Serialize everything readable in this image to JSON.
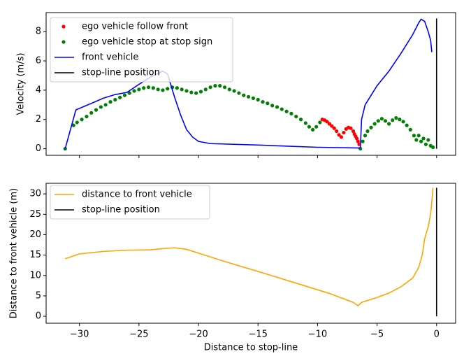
{
  "chart_data": [
    {
      "type": "line",
      "ylabel": "Velocity (m/s)",
      "xlim": [
        -32.8,
        1.6
      ],
      "ylim": [
        -0.45,
        9.3
      ],
      "yticks": [
        0,
        2,
        4,
        6,
        8
      ],
      "legend": "upper left",
      "series": [
        {
          "name": "ego vehicle follow front",
          "type": "scatter",
          "color": "#ff0000",
          "x": [
            -9.6,
            -9.4,
            -9.2,
            -9.0,
            -8.8,
            -8.6,
            -8.4,
            -8.2,
            -8.0,
            -7.8,
            -7.6,
            -7.4,
            -7.2,
            -7.0,
            -6.9,
            -6.8,
            -6.7,
            -6.6,
            -6.5
          ],
          "values": [
            2.0,
            1.95,
            1.85,
            1.7,
            1.55,
            1.4,
            1.2,
            0.95,
            0.8,
            1.1,
            1.35,
            1.45,
            1.4,
            1.2,
            1.0,
            0.85,
            0.7,
            0.5,
            0.3
          ]
        },
        {
          "name": "ego vehicle stop at stop sign",
          "type": "scatter",
          "color": "#008000",
          "x": [
            -31.2,
            -30.5,
            -30.2,
            -29.8,
            -29.4,
            -29.0,
            -28.6,
            -28.2,
            -27.8,
            -27.4,
            -27.0,
            -26.6,
            -26.2,
            -25.8,
            -25.4,
            -25.0,
            -24.6,
            -24.2,
            -23.8,
            -23.4,
            -23.0,
            -22.6,
            -22.2,
            -21.8,
            -21.4,
            -21.0,
            -20.6,
            -20.2,
            -19.8,
            -19.4,
            -19.0,
            -18.6,
            -18.2,
            -17.8,
            -17.4,
            -17.0,
            -16.6,
            -16.2,
            -15.8,
            -15.4,
            -15.0,
            -14.6,
            -14.2,
            -13.8,
            -13.4,
            -13.0,
            -12.6,
            -12.2,
            -11.8,
            -11.4,
            -11.0,
            -10.7,
            -10.4,
            -10.1,
            -9.8,
            -6.4,
            -6.2,
            -6.0,
            -5.8,
            -5.5,
            -5.2,
            -4.9,
            -4.6,
            -4.3,
            -4.0,
            -3.7,
            -3.4,
            -3.1,
            -2.8,
            -2.5,
            -2.2,
            -1.9,
            -1.7,
            -1.5,
            -1.3,
            -1.1,
            -0.9,
            -0.7,
            -0.5,
            -0.3
          ],
          "values": [
            0.0,
            1.6,
            1.8,
            2.0,
            2.2,
            2.45,
            2.65,
            2.85,
            3.0,
            3.2,
            3.35,
            3.5,
            3.65,
            3.8,
            3.95,
            4.05,
            4.15,
            4.2,
            4.15,
            4.05,
            4.0,
            4.1,
            4.2,
            4.15,
            4.05,
            3.95,
            3.85,
            3.8,
            3.9,
            4.05,
            4.2,
            4.3,
            4.3,
            4.2,
            4.05,
            3.95,
            3.8,
            3.65,
            3.55,
            3.45,
            3.35,
            3.2,
            3.1,
            2.95,
            2.85,
            2.7,
            2.55,
            2.4,
            2.2,
            2.0,
            1.75,
            1.5,
            1.3,
            1.5,
            1.8,
            0.0,
            0.5,
            0.9,
            1.2,
            1.45,
            1.7,
            1.9,
            2.05,
            1.9,
            1.7,
            1.95,
            2.1,
            2.0,
            1.85,
            1.6,
            1.3,
            0.9,
            0.6,
            0.9,
            0.5,
            0.7,
            0.3,
            0.6,
            0.2,
            0.1
          ]
        },
        {
          "name": "front vehicle",
          "type": "line",
          "color": "#0000ff",
          "x": [
            -31.2,
            -30.3,
            -29.0,
            -28.0,
            -27.0,
            -26.0,
            -25.0,
            -24.0,
            -23.0,
            -22.6,
            -22.0,
            -21.5,
            -21.0,
            -20.5,
            -20.0,
            -19.0,
            -15.0,
            -10.0,
            -6.5,
            -6.4,
            -6.3,
            -6.0,
            -5.0,
            -4.0,
            -3.0,
            -2.0,
            -1.5,
            -1.3,
            -1.0,
            -0.7,
            -0.5,
            -0.4
          ],
          "values": [
            0.0,
            2.65,
            3.1,
            3.45,
            3.7,
            3.85,
            4.4,
            4.9,
            5.3,
            5.1,
            3.5,
            2.3,
            1.3,
            0.8,
            0.5,
            0.35,
            0.25,
            0.1,
            0.05,
            0.1,
            2.0,
            3.0,
            4.3,
            5.3,
            6.5,
            7.8,
            8.6,
            8.85,
            8.7,
            8.0,
            7.4,
            6.6
          ]
        },
        {
          "name": "stop-line position",
          "type": "line",
          "color": "#000000",
          "x": [
            0,
            0
          ],
          "values": [
            0,
            8.9
          ]
        }
      ]
    },
    {
      "type": "line",
      "ylabel": "Distance to front vehicle (m)",
      "xlabel": "Distance to stop-line",
      "xlim": [
        -32.8,
        1.6
      ],
      "ylim": [
        -1.7,
        32.6
      ],
      "yticks": [
        0,
        5,
        10,
        15,
        20,
        25,
        30
      ],
      "legend": "upper left",
      "xticks": [
        {
          "value": -30,
          "label": "−30"
        },
        {
          "value": -25,
          "label": "−25"
        },
        {
          "value": -20,
          "label": "−20"
        },
        {
          "value": -15,
          "label": "−15"
        },
        {
          "value": -10,
          "label": "−10"
        },
        {
          "value": -5,
          "label": "−5"
        },
        0
      ],
      "series": [
        {
          "name": "distance to front vehicle",
          "type": "line",
          "color": "#ffa500",
          "x": [
            -31.2,
            -30.0,
            -28.0,
            -26.0,
            -24.0,
            -23.0,
            -22.0,
            -21.0,
            -20.0,
            -18.0,
            -15.0,
            -12.0,
            -9.0,
            -7.0,
            -6.6,
            -6.3,
            -5.0,
            -4.0,
            -3.0,
            -2.0,
            -1.5,
            -1.2,
            -1.0,
            -0.7,
            -0.5,
            -0.4,
            -0.3
          ],
          "values": [
            14.1,
            15.3,
            15.9,
            16.2,
            16.3,
            16.6,
            16.8,
            16.4,
            15.5,
            13.6,
            11.0,
            8.3,
            5.6,
            3.4,
            2.6,
            3.4,
            4.6,
            5.7,
            7.2,
            9.4,
            12.0,
            15.0,
            19.0,
            22.0,
            25.0,
            28.0,
            31.5
          ]
        },
        {
          "name": "stop-line position",
          "type": "line",
          "color": "#000000",
          "x": [
            0,
            0
          ],
          "values": [
            0,
            31.5
          ]
        }
      ]
    }
  ]
}
